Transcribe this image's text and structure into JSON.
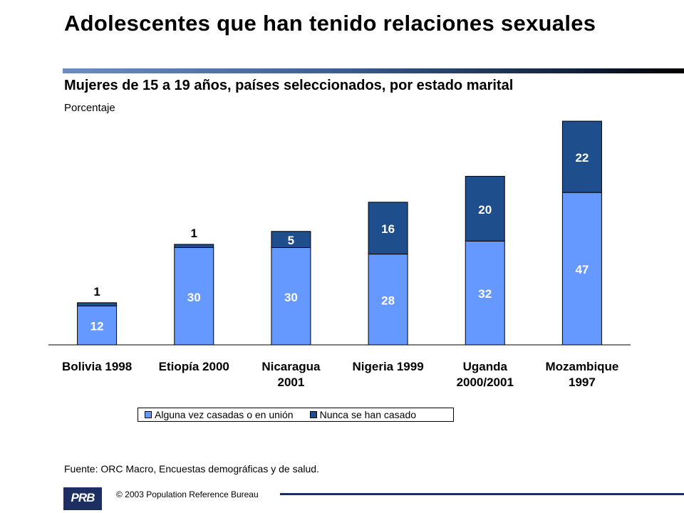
{
  "header": {
    "title": "Adolescentes que han tenido relaciones sexuales",
    "subtitle": "Mujeres de 15 a 19 años, países seleccionados, por estado marital",
    "units": "Porcentaje"
  },
  "chart_data": {
    "type": "bar",
    "stacked": true,
    "categories": [
      "Bolivia 1998",
      "Etiopía 2000",
      "Nicaragua 2001",
      "Nigeria 1999",
      "Uganda 2000/2001",
      "Mozambique 1997"
    ],
    "category_lines": [
      [
        "Bolivia 1998"
      ],
      [
        "Etiopía 2000"
      ],
      [
        "Nicaragua",
        "2001"
      ],
      [
        "Nigeria 1999"
      ],
      [
        "Uganda",
        "2000/2001"
      ],
      [
        "Mozambique",
        "1997"
      ]
    ],
    "series": [
      {
        "name": "Alguna vez casadas o en unión",
        "values": [
          12,
          30,
          30,
          28,
          32,
          47
        ],
        "color": "#6699ff"
      },
      {
        "name": "Nunca se han casado",
        "values": [
          1,
          1,
          5,
          16,
          20,
          22
        ],
        "color": "#1f4e8c"
      }
    ],
    "ylim": [
      0,
      100
    ],
    "grid": false,
    "legend_position": "bottom"
  },
  "footer": {
    "source": "Fuente: ORC Macro, Encuestas demográficas y de salud.",
    "copyright": "© 2003  Population Reference Bureau",
    "logo_text": "PRB"
  }
}
